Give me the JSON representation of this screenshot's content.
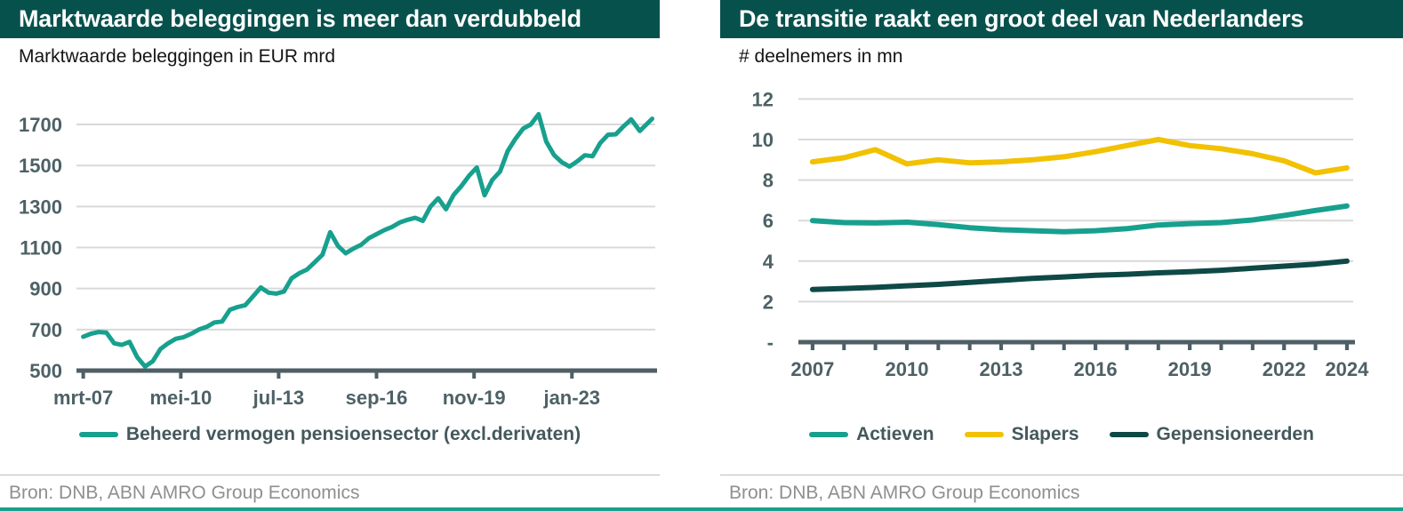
{
  "colors": {
    "header_bg": "#07514D",
    "title_text": "#FFFFFF",
    "teal_line": "#17A08E",
    "yellow_line": "#F2C100",
    "dark_teal_line": "#0E4946",
    "grid": "#D9D9D9",
    "axis": "#4E5F66",
    "tick_label": "#4D6166",
    "legend_text": "#44585C",
    "source_text": "#8F8F8F",
    "bottom_accent": "#17A08E"
  },
  "panels": [
    {
      "title": "Marktwaarde beleggingen is meer dan verdubbeld",
      "subtitle": "Marktwaarde beleggingen in EUR mrd",
      "source": "Bron: DNB, ABN AMRO Group Economics",
      "legend": [
        {
          "label": "Beheerd vermogen pensioensector (excl.derivaten)",
          "color": "#17A08E"
        }
      ]
    },
    {
      "title": "De transitie raakt een groot deel van Nederlanders",
      "subtitle": "# deelnemers in mn",
      "source": "Bron: DNB, ABN AMRO Group Economics",
      "legend": [
        {
          "label": "Actieven",
          "color": "#17A08E"
        },
        {
          "label": "Slapers",
          "color": "#F2C100"
        },
        {
          "label": "Gepensioneerden",
          "color": "#0E4946"
        }
      ]
    }
  ],
  "chart_data": [
    {
      "type": "line",
      "title": "Marktwaarde beleggingen is meer dan verdubbeld",
      "ylabel": "Marktwaarde beleggingen in EUR mrd",
      "xlabel": "",
      "grid": true,
      "legend_position": "bottom",
      "ylim": [
        500,
        1770
      ],
      "yticks": [
        {
          "v": 500,
          "label": "500"
        },
        {
          "v": 700,
          "label": "700"
        },
        {
          "v": 900,
          "label": "900"
        },
        {
          "v": 1100,
          "label": "1100"
        },
        {
          "v": 1300,
          "label": "1300"
        },
        {
          "v": 1500,
          "label": "1500"
        },
        {
          "v": 1700,
          "label": "1700"
        }
      ],
      "xticks": [
        {
          "x": 2007.17,
          "label": "mrt-07"
        },
        {
          "x": 2010.33,
          "label": "mei-10"
        },
        {
          "x": 2013.5,
          "label": "jul-13"
        },
        {
          "x": 2016.67,
          "label": "sep-16"
        },
        {
          "x": 2019.83,
          "label": "nov-19"
        },
        {
          "x": 2023.0,
          "label": "jan-23"
        }
      ],
      "series": [
        {
          "name": "Beheerd vermogen pensioensector (excl.derivaten)",
          "color": "#17A08E",
          "width": 5,
          "points": [
            [
              2007.17,
              665
            ],
            [
              2007.42,
              680
            ],
            [
              2007.67,
              688
            ],
            [
              2007.92,
              685
            ],
            [
              2008.17,
              633
            ],
            [
              2008.42,
              625
            ],
            [
              2008.67,
              640
            ],
            [
              2008.92,
              565
            ],
            [
              2009.17,
              520
            ],
            [
              2009.42,
              545
            ],
            [
              2009.67,
              605
            ],
            [
              2009.92,
              633
            ],
            [
              2010.17,
              655
            ],
            [
              2010.42,
              663
            ],
            [
              2010.67,
              680
            ],
            [
              2010.92,
              700
            ],
            [
              2011.17,
              713
            ],
            [
              2011.42,
              735
            ],
            [
              2011.67,
              739
            ],
            [
              2011.92,
              797
            ],
            [
              2012.17,
              810
            ],
            [
              2012.42,
              819
            ],
            [
              2012.67,
              862
            ],
            [
              2012.92,
              905
            ],
            [
              2013.17,
              880
            ],
            [
              2013.42,
              875
            ],
            [
              2013.67,
              885
            ],
            [
              2013.92,
              950
            ],
            [
              2014.17,
              975
            ],
            [
              2014.42,
              993
            ],
            [
              2014.67,
              1028
            ],
            [
              2014.92,
              1065
            ],
            [
              2015.17,
              1175
            ],
            [
              2015.42,
              1108
            ],
            [
              2015.67,
              1072
            ],
            [
              2015.92,
              1095
            ],
            [
              2016.17,
              1113
            ],
            [
              2016.42,
              1145
            ],
            [
              2016.67,
              1165
            ],
            [
              2016.92,
              1185
            ],
            [
              2017.17,
              1200
            ],
            [
              2017.42,
              1222
            ],
            [
              2017.67,
              1235
            ],
            [
              2017.92,
              1245
            ],
            [
              2018.17,
              1230
            ],
            [
              2018.42,
              1300
            ],
            [
              2018.67,
              1340
            ],
            [
              2018.92,
              1287
            ],
            [
              2019.17,
              1357
            ],
            [
              2019.42,
              1400
            ],
            [
              2019.67,
              1450
            ],
            [
              2019.92,
              1490
            ],
            [
              2020.17,
              1355
            ],
            [
              2020.42,
              1430
            ],
            [
              2020.67,
              1470
            ],
            [
              2020.92,
              1570
            ],
            [
              2021.17,
              1630
            ],
            [
              2021.42,
              1680
            ],
            [
              2021.67,
              1700
            ],
            [
              2021.92,
              1750
            ],
            [
              2022.17,
              1616
            ],
            [
              2022.42,
              1551
            ],
            [
              2022.67,
              1516
            ],
            [
              2022.92,
              1495
            ],
            [
              2023.17,
              1520
            ],
            [
              2023.42,
              1550
            ],
            [
              2023.67,
              1545
            ],
            [
              2023.92,
              1610
            ],
            [
              2024.17,
              1650
            ],
            [
              2024.42,
              1652
            ],
            [
              2024.67,
              1690
            ],
            [
              2024.92,
              1725
            ],
            [
              2025.2,
              1668
            ],
            [
              2025.6,
              1728
            ]
          ]
        }
      ]
    },
    {
      "type": "line",
      "title": "De transitie raakt een groot deel van Nederlanders",
      "ylabel": "# deelnemers in mn",
      "xlabel": "",
      "grid": true,
      "legend_position": "bottom",
      "ylim": [
        0,
        12.6
      ],
      "yticks": [
        {
          "v": 0,
          "label": "-"
        },
        {
          "v": 2,
          "label": "2"
        },
        {
          "v": 4,
          "label": "4"
        },
        {
          "v": 6,
          "label": "6"
        },
        {
          "v": 8,
          "label": "8"
        },
        {
          "v": 10,
          "label": "10"
        },
        {
          "v": 12,
          "label": "12"
        }
      ],
      "xticks": [
        {
          "x": 2007,
          "label": "2007"
        },
        {
          "x": 2010,
          "label": "2010"
        },
        {
          "x": 2013,
          "label": "2013"
        },
        {
          "x": 2016,
          "label": "2016"
        },
        {
          "x": 2019,
          "label": "2019"
        },
        {
          "x": 2022,
          "label": "2022"
        },
        {
          "x": 2024,
          "label": "2024"
        }
      ],
      "minor_xticks": [
        2007,
        2008,
        2009,
        2010,
        2011,
        2012,
        2013,
        2014,
        2015,
        2016,
        2017,
        2018,
        2019,
        2020,
        2021,
        2022,
        2023,
        2024
      ],
      "x": [
        2007,
        2008,
        2009,
        2010,
        2011,
        2012,
        2013,
        2014,
        2015,
        2016,
        2017,
        2018,
        2019,
        2020,
        2021,
        2022,
        2023,
        2024
      ],
      "series": [
        {
          "name": "Actieven",
          "color": "#17A08E",
          "width": 6,
          "values": [
            6.0,
            5.9,
            5.88,
            5.92,
            5.8,
            5.65,
            5.55,
            5.5,
            5.45,
            5.5,
            5.6,
            5.78,
            5.85,
            5.9,
            6.03,
            6.25,
            6.5,
            6.72
          ]
        },
        {
          "name": "Slapers",
          "color": "#F2C100",
          "width": 6,
          "values": [
            8.9,
            9.1,
            9.5,
            8.8,
            9.0,
            8.85,
            8.9,
            9.0,
            9.15,
            9.4,
            9.7,
            10.0,
            9.7,
            9.55,
            9.3,
            8.95,
            8.35,
            8.6
          ]
        },
        {
          "name": "Gepensioneerden",
          "color": "#0E4946",
          "width": 6,
          "values": [
            2.6,
            2.65,
            2.7,
            2.78,
            2.85,
            2.95,
            3.05,
            3.15,
            3.22,
            3.3,
            3.35,
            3.42,
            3.48,
            3.55,
            3.65,
            3.75,
            3.85,
            4.0
          ]
        }
      ]
    }
  ]
}
